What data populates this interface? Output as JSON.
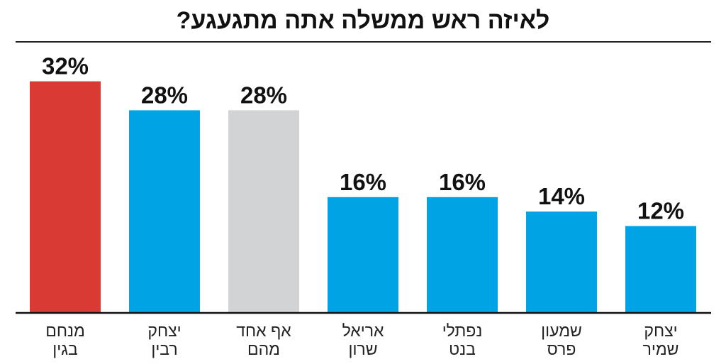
{
  "chart_data": {
    "type": "bar",
    "title": "לאיזה ראש ממשלה אתה מתגעגע?",
    "xlabel": "",
    "ylabel": "",
    "ylim": [
      0,
      40
    ],
    "unit_suffix": "%",
    "categories": [
      [
        "מנחם",
        "בגין"
      ],
      [
        "יצחק",
        "רבין"
      ],
      [
        "אף אחד",
        "מהם"
      ],
      [
        "אריאל",
        "שרון"
      ],
      [
        "נפתלי",
        "בנט"
      ],
      [
        "שמעון",
        "פרס"
      ],
      [
        "יצחק",
        "שמיר"
      ]
    ],
    "values": [
      32,
      28,
      28,
      16,
      16,
      14,
      12
    ],
    "bar_colors": [
      "#d93a34",
      "#00a3e4",
      "#d2d3d5",
      "#00a3e4",
      "#00a3e4",
      "#00a3e4",
      "#00a3e4"
    ],
    "grid": false,
    "legend": "none"
  }
}
